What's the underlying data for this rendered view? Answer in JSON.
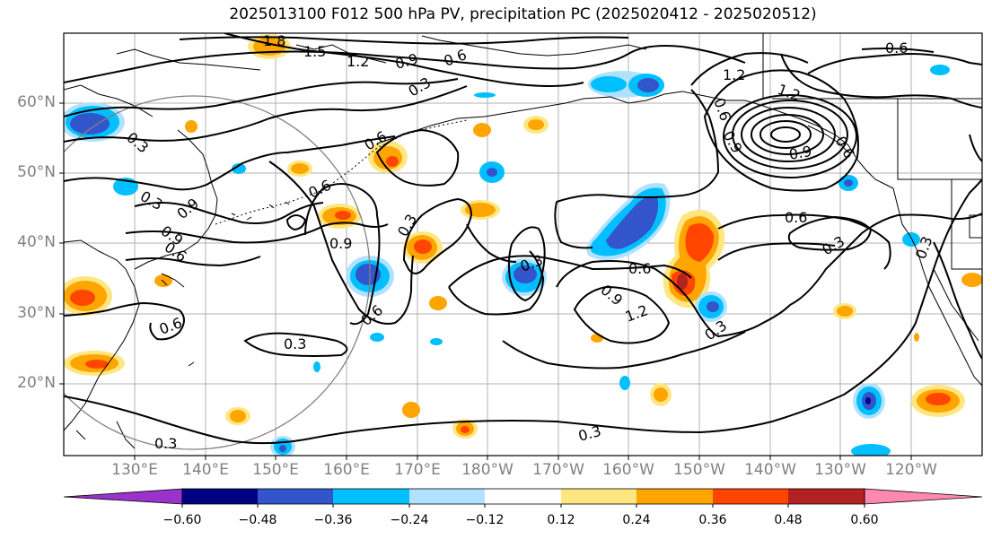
{
  "title": "2025013100 F012 500 hPa PV, precipitation PC (2025020412 - 2025020512)",
  "map": {
    "latitude_labels": [
      "60°N",
      "50°N",
      "40°N",
      "30°N",
      "20°N"
    ],
    "longitude_labels": [
      "130°E",
      "140°E",
      "150°E",
      "160°E",
      "170°E",
      "180°W",
      "170°W",
      "160°W",
      "150°W",
      "140°W",
      "130°W",
      "120°W"
    ],
    "contour_labels": [
      "1.8",
      "1.5",
      "1.2",
      "0.9",
      "0.6",
      "0.3",
      "0.6",
      "0.6",
      "0.3",
      "1.2",
      "0.6",
      "1.2",
      "0.9",
      "0.6",
      "0.9",
      "0.3",
      "0.6",
      "0.9",
      "0.9",
      "0.6",
      "0.6",
      "0.3",
      "0.6",
      "0.3",
      "0.3",
      "0.9",
      "1.2",
      "0.3",
      "0.6",
      "0.9",
      "0.6",
      "0.3",
      "0.3",
      "0.3",
      "0.3"
    ]
  },
  "colorbar": {
    "tick_labels": [
      "−0.60",
      "−0.48",
      "−0.36",
      "−0.24",
      "−0.12",
      "0.12",
      "0.24",
      "0.36",
      "0.48",
      "0.60"
    ],
    "colors": [
      "#9933cc",
      "#000080",
      "#3355cc",
      "#00bfff",
      "#b0e2ff",
      "#ffffff",
      "#ffe680",
      "#ffa500",
      "#ff4500",
      "#b22222",
      "#ff88b0"
    ]
  }
}
